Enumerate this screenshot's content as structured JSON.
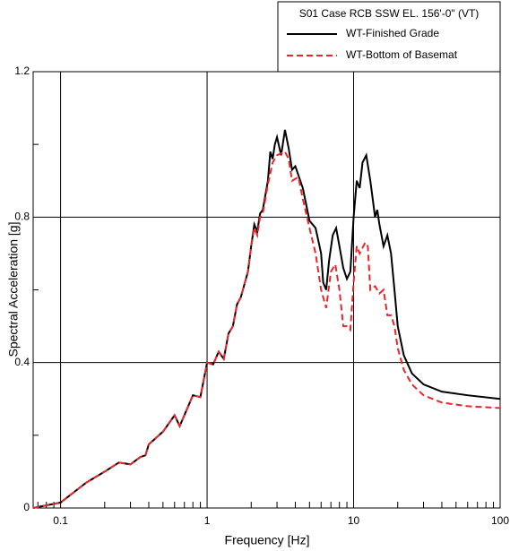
{
  "chart_data": {
    "type": "line",
    "legend_title": "S01 Case RCB SSW EL. 156'-0\" (VT)",
    "xlabel": "Frequency [Hz]",
    "ylabel": "Spectral Acceleration [g]",
    "xscale": "log",
    "xlim": [
      0.065,
      100
    ],
    "ylim": [
      0,
      1.2
    ],
    "xticks": [
      0.1,
      1,
      10,
      100
    ],
    "xminorticks": [
      0.07,
      0.08,
      0.09,
      0.2,
      0.3,
      0.4,
      0.5,
      0.6,
      0.7,
      0.8,
      0.9,
      2,
      3,
      4,
      5,
      6,
      7,
      8,
      9,
      20,
      30,
      40,
      50,
      60,
      70,
      80,
      90
    ],
    "yticks": [
      0,
      0.4,
      0.8,
      1.2
    ],
    "yminorticks": [
      0.2,
      0.6,
      1.0
    ],
    "grid": true,
    "legend": "top-right",
    "series": [
      {
        "name": "WT-Finished Grade",
        "color": "#000000",
        "dash": "solid",
        "x": [
          0.065,
          0.1,
          0.15,
          0.2,
          0.25,
          0.3,
          0.35,
          0.38,
          0.4,
          0.5,
          0.6,
          0.65,
          0.8,
          0.9,
          1.0,
          1.1,
          1.2,
          1.3,
          1.4,
          1.5,
          1.6,
          1.7,
          1.9,
          2.0,
          2.1,
          2.2,
          2.3,
          2.4,
          2.6,
          2.7,
          2.8,
          2.9,
          3.0,
          3.2,
          3.4,
          3.6,
          3.8,
          4.0,
          4.5,
          5.0,
          5.5,
          6.0,
          6.2,
          6.5,
          6.8,
          7.2,
          7.6,
          8.0,
          8.5,
          9.0,
          9.5,
          10,
          10.5,
          11,
          11.5,
          12.2,
          13,
          13.5,
          14,
          14.5,
          15,
          16,
          17,
          18,
          19,
          20,
          22,
          25,
          30,
          40,
          60,
          100
        ],
        "values": [
          0.0,
          0.015,
          0.07,
          0.1,
          0.125,
          0.12,
          0.14,
          0.145,
          0.175,
          0.21,
          0.255,
          0.225,
          0.31,
          0.305,
          0.4,
          0.395,
          0.43,
          0.41,
          0.48,
          0.5,
          0.56,
          0.58,
          0.65,
          0.72,
          0.78,
          0.76,
          0.81,
          0.82,
          0.9,
          0.98,
          0.96,
          1.0,
          1.02,
          0.97,
          1.04,
          0.99,
          0.93,
          0.94,
          0.88,
          0.79,
          0.77,
          0.7,
          0.62,
          0.6,
          0.68,
          0.75,
          0.77,
          0.72,
          0.66,
          0.63,
          0.65,
          0.8,
          0.9,
          0.88,
          0.95,
          0.97,
          0.9,
          0.85,
          0.8,
          0.82,
          0.78,
          0.72,
          0.75,
          0.7,
          0.6,
          0.5,
          0.42,
          0.37,
          0.34,
          0.32,
          0.31,
          0.3
        ]
      },
      {
        "name": "WT-Bottom of Basemat",
        "color": "#e8262b",
        "dash": "dashed",
        "x": [
          0.065,
          0.1,
          0.15,
          0.2,
          0.25,
          0.3,
          0.35,
          0.38,
          0.4,
          0.5,
          0.6,
          0.65,
          0.8,
          0.9,
          1.0,
          1.1,
          1.2,
          1.3,
          1.4,
          1.5,
          1.6,
          1.7,
          1.9,
          2.0,
          2.1,
          2.2,
          2.3,
          2.4,
          2.6,
          2.8,
          3.0,
          3.4,
          3.6,
          3.8,
          4.2,
          4.5,
          5,
          5.5,
          6,
          6.5,
          7,
          7.5,
          8,
          8.5,
          9,
          9.5,
          10,
          10.5,
          11,
          12,
          12.5,
          13,
          14,
          15,
          16,
          17,
          18,
          19,
          20,
          22,
          25,
          30,
          40,
          60,
          100
        ],
        "values": [
          0.0,
          0.015,
          0.07,
          0.1,
          0.125,
          0.12,
          0.14,
          0.145,
          0.175,
          0.21,
          0.255,
          0.225,
          0.31,
          0.305,
          0.4,
          0.395,
          0.43,
          0.41,
          0.48,
          0.5,
          0.56,
          0.58,
          0.65,
          0.72,
          0.77,
          0.75,
          0.8,
          0.81,
          0.89,
          0.95,
          0.97,
          0.98,
          0.96,
          0.9,
          0.91,
          0.85,
          0.77,
          0.7,
          0.6,
          0.55,
          0.65,
          0.67,
          0.6,
          0.5,
          0.5,
          0.49,
          0.62,
          0.72,
          0.7,
          0.73,
          0.72,
          0.6,
          0.61,
          0.59,
          0.6,
          0.53,
          0.53,
          0.5,
          0.44,
          0.38,
          0.34,
          0.31,
          0.29,
          0.28,
          0.275
        ]
      }
    ]
  }
}
